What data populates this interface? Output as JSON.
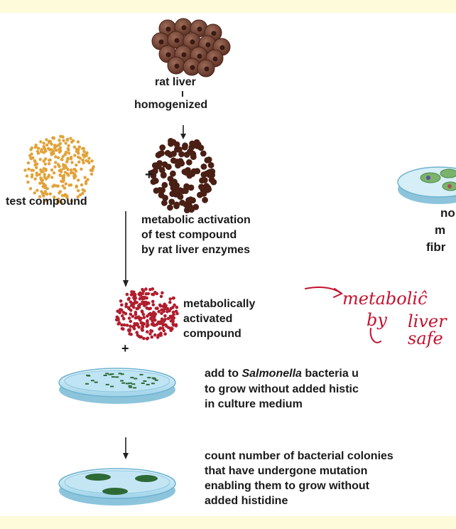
{
  "labels": {
    "rat_liver": "rat liver",
    "homogenized": "homogenized",
    "test_compound": "test compound",
    "plus_1": "+",
    "activation_1": "metabolic activation",
    "activation_2": "of test compound",
    "activation_3": "by rat liver enzymes",
    "activated_1": "metabolically",
    "activated_2": "activated",
    "activated_3": "compound",
    "plus_2": "+",
    "salmonella_pre": "add to ",
    "salmonella_italic": "Salmonella",
    "salmonella_post": " bacteria u",
    "grow_line": "to grow without added histic",
    "medium_line": "in culture medium",
    "count_1": "count number of bacterial colonies",
    "count_2": "that have undergone mutation",
    "count_3": "enabling them to grow without",
    "count_4": "added histidine",
    "right_1": "no",
    "right_2": "m",
    "right_3": "fibr"
  },
  "handwriting": {
    "line1": "metaboliĉ",
    "line2a": "by",
    "line2b": "liver",
    "line3": "safe"
  },
  "colors": {
    "background": "#fdfbd9",
    "liver_cell": "#7b4a3a",
    "test_compound_dot": "#e2a23a",
    "liver_enzyme_dot": "#4a1f14",
    "activated_dot": "#b01e2e",
    "dish": "#9fd3ea",
    "colony": "#2d6a36",
    "annotation": "#c4122f"
  }
}
